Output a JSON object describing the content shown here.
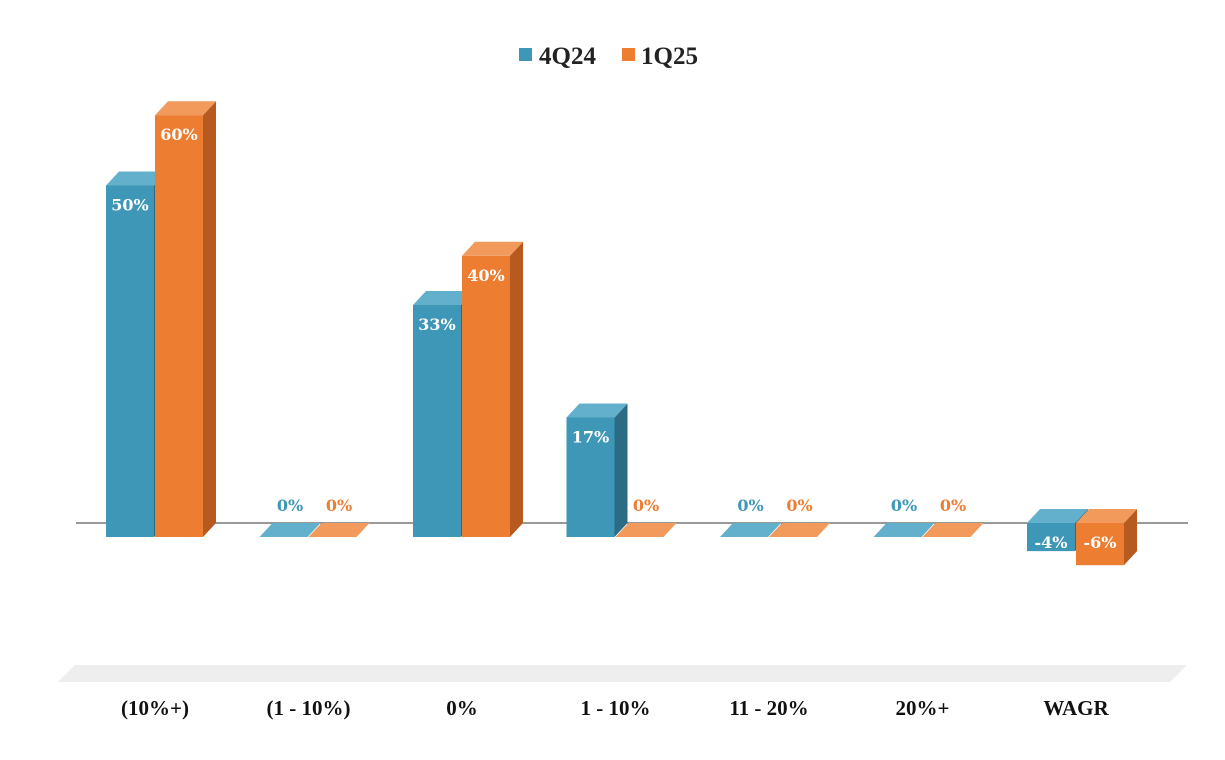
{
  "chart_data": {
    "type": "bar",
    "title": "",
    "xlabel": "",
    "ylabel": "",
    "categories": [
      "(10%+)",
      "(1 - 10%)",
      "0%",
      "1 - 10%",
      "11 - 20%",
      "20%+",
      "WAGR"
    ],
    "series": [
      {
        "name": "4Q24",
        "values": [
          50,
          0,
          33,
          17,
          0,
          0,
          -4
        ],
        "labels": [
          "50%",
          "0%",
          "33%",
          "17%",
          "0%",
          "0%",
          "-4%"
        ]
      },
      {
        "name": "1Q25",
        "values": [
          60,
          0,
          40,
          0,
          0,
          0,
          -6
        ],
        "labels": [
          "60%",
          "0%",
          "40%",
          "0%",
          "0%",
          "0%",
          "-6%"
        ]
      }
    ],
    "ylim": [
      -20,
      65
    ],
    "grid": false,
    "legend": "top-center",
    "three_d": true
  },
  "colors": {
    "series": [
      "#3e97b6",
      "#ed7d31"
    ],
    "series_top": [
      "#62b0cb",
      "#f19a5c"
    ],
    "series_side": [
      "#2b6c84",
      "#b65a1f"
    ],
    "floor": "#eeeeee",
    "axis": "#333333"
  }
}
